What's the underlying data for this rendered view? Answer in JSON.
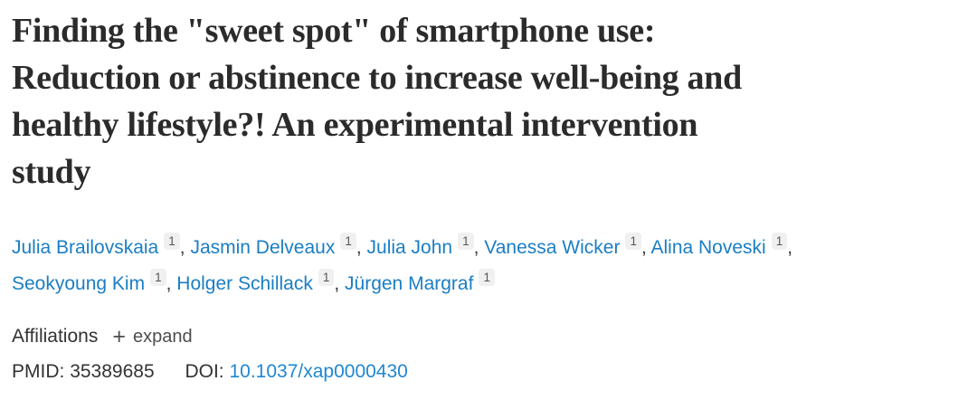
{
  "page": {
    "background": "#ffffff"
  },
  "colors": {
    "title_text": "#2b2b2b",
    "link_blue": "#1b7ec4",
    "doi_link_blue": "#1f87d2",
    "body_text": "#333333",
    "badge_background": "#f0f0f0",
    "badge_text": "#565656"
  },
  "title": {
    "full_text": "Finding the \"sweet spot\" of smartphone use: Reduction or abstinence to increase well-being and healthy lifestyle?! An experimental intervention study",
    "lines": [
      "Finding the \"sweet spot\" of smartphone use:",
      "Reduction or abstinence to increase well-being and",
      "healthy lifestyle?! An experimental intervention",
      "study"
    ]
  },
  "authors": {
    "lines": [
      [
        {
          "name": "Julia Brailovskaia",
          "sup": "1"
        },
        {
          "name": "Jasmin Delveaux",
          "sup": "1"
        },
        {
          "name": "Julia John",
          "sup": "1"
        },
        {
          "name": "Vanessa Wicker",
          "sup": "1"
        },
        {
          "name": "Alina Noveski",
          "sup": "1"
        }
      ],
      [
        {
          "name": "Seokyoung Kim",
          "sup": "1"
        },
        {
          "name": "Holger Schillack",
          "sup": "1"
        },
        {
          "name": "Jürgen Margraf",
          "sup": "1"
        }
      ]
    ],
    "separator": ", "
  },
  "affiliations": {
    "label": "Affiliations",
    "plus_icon": "+",
    "expand_label": "expand"
  },
  "identifiers": {
    "pmid_label": "PMID:",
    "pmid_value": "35389685",
    "doi_label": "DOI:",
    "doi_value": "10.1037/xap0000430"
  }
}
